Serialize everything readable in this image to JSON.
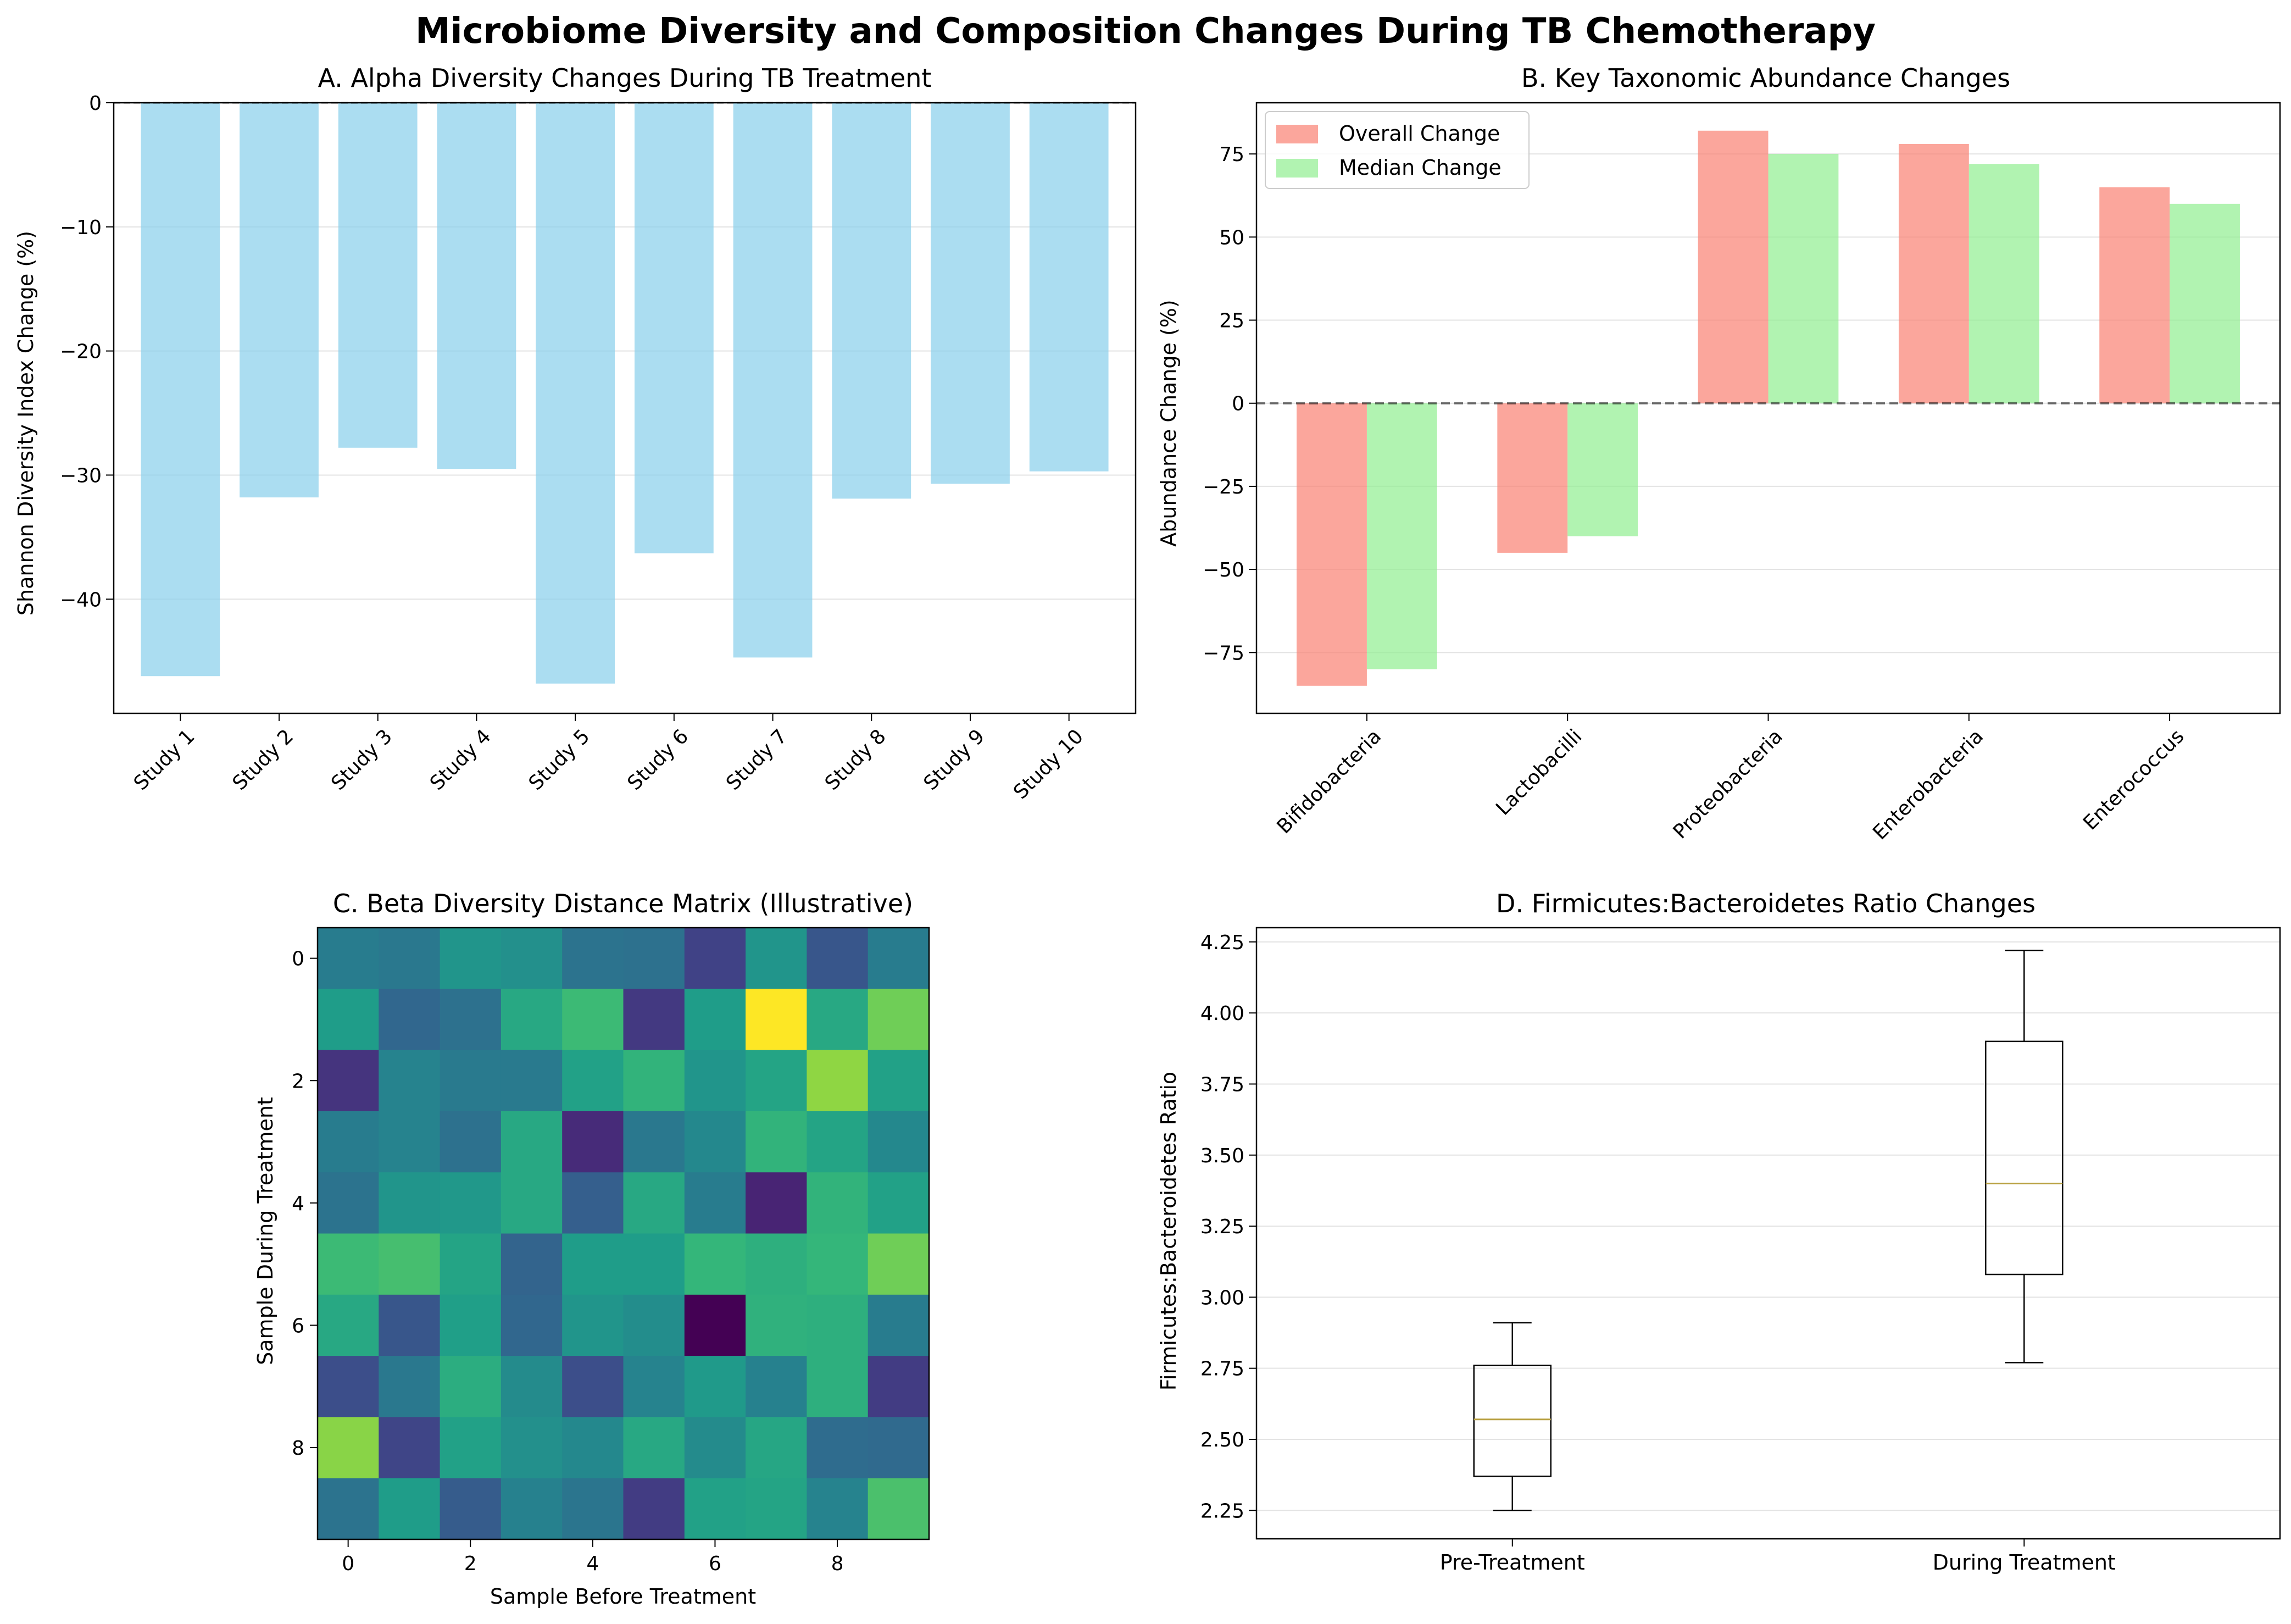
{
  "figure_title": "Microbiome Diversity and Composition Changes During TB Chemotherapy",
  "chart_data": [
    {
      "type": "bar",
      "title": "A. Alpha Diversity Changes During TB Treatment",
      "xlabel": "",
      "ylabel": "Shannon Diversity Index Change (%)",
      "categories": [
        "Study 1",
        "Study 2",
        "Study 3",
        "Study 4",
        "Study 5",
        "Study 6",
        "Study 7",
        "Study 8",
        "Study 9",
        "Study 10"
      ],
      "values": [
        -46.2,
        -31.8,
        -27.8,
        -29.5,
        -46.8,
        -36.3,
        -44.7,
        -31.9,
        -30.7,
        -29.7
      ],
      "ylim": [
        -49.2,
        0
      ],
      "yticks": [
        0,
        -10,
        -20,
        -30,
        -40
      ],
      "ytick_labels": [
        "0",
        "−10",
        "−20",
        "−30",
        "−40"
      ],
      "bar_color": "#87ceeb",
      "grid": "y",
      "zero_line": "dashed"
    },
    {
      "type": "bar",
      "title": "B. Key Taxonomic Abundance Changes",
      "xlabel": "",
      "ylabel": "Abundance Change (%)",
      "categories": [
        "Bifidobacteria",
        "Lactobacilli",
        "Proteobacteria",
        "Enterobacteria",
        "Enterococcus"
      ],
      "series": [
        {
          "name": "Overall Change",
          "values": [
            -85,
            -45,
            82,
            78,
            65
          ],
          "color": "#fa8072"
        },
        {
          "name": "Median Change",
          "values": [
            -80,
            -40,
            75,
            72,
            60
          ],
          "color": "#90ee90"
        }
      ],
      "ylim": [
        -93.3,
        90.4
      ],
      "yticks": [
        75,
        50,
        25,
        0,
        -25,
        -50,
        -75
      ],
      "ytick_labels": [
        "75",
        "50",
        "25",
        "0",
        "−25",
        "−50",
        "−75"
      ],
      "legend": "top-left",
      "grid": "y",
      "zero_line": "dashed"
    },
    {
      "type": "heatmap",
      "title": "C. Beta Diversity Distance Matrix (Illustrative)",
      "xlabel": "Sample Before Treatment",
      "ylabel": "Sample During Treatment",
      "xticks": [
        0,
        2,
        4,
        6,
        8
      ],
      "yticks": [
        0,
        2,
        4,
        6,
        8
      ],
      "colormap": "viridis",
      "matrix": [
        [
          0.42,
          0.4,
          0.52,
          0.5,
          0.38,
          0.37,
          0.2,
          0.52,
          0.27,
          0.42
        ],
        [
          0.55,
          0.33,
          0.37,
          0.6,
          0.68,
          0.17,
          0.55,
          1.0,
          0.6,
          0.78
        ],
        [
          0.15,
          0.45,
          0.41,
          0.41,
          0.57,
          0.65,
          0.52,
          0.58,
          0.83,
          0.57
        ],
        [
          0.42,
          0.45,
          0.37,
          0.6,
          0.12,
          0.4,
          0.47,
          0.65,
          0.58,
          0.47
        ],
        [
          0.38,
          0.52,
          0.53,
          0.6,
          0.3,
          0.6,
          0.42,
          0.1,
          0.65,
          0.57
        ],
        [
          0.68,
          0.7,
          0.58,
          0.32,
          0.55,
          0.55,
          0.66,
          0.63,
          0.66,
          0.78
        ],
        [
          0.6,
          0.27,
          0.56,
          0.33,
          0.52,
          0.49,
          0.0,
          0.64,
          0.63,
          0.42
        ],
        [
          0.24,
          0.4,
          0.62,
          0.48,
          0.24,
          0.45,
          0.54,
          0.44,
          0.63,
          0.18
        ],
        [
          0.82,
          0.21,
          0.57,
          0.5,
          0.47,
          0.6,
          0.48,
          0.59,
          0.35,
          0.34
        ],
        [
          0.38,
          0.55,
          0.29,
          0.44,
          0.39,
          0.18,
          0.57,
          0.58,
          0.45,
          0.71
        ]
      ]
    },
    {
      "type": "box",
      "title": "D. Firmicutes:Bacteroidetes Ratio Changes",
      "xlabel": "",
      "ylabel": "Firmicutes:Bacteroidetes Ratio",
      "categories": [
        "Pre-Treatment",
        "During Treatment"
      ],
      "boxes": [
        {
          "whisker_low": 2.25,
          "q1": 2.37,
          "median": 2.57,
          "q3": 2.76,
          "whisker_high": 2.91
        },
        {
          "whisker_low": 2.77,
          "q1": 3.08,
          "median": 3.4,
          "q3": 3.9,
          "whisker_high": 4.22
        }
      ],
      "ylim": [
        2.15,
        4.3
      ],
      "yticks": [
        2.25,
        2.5,
        2.75,
        3.0,
        3.25,
        3.5,
        3.75,
        4.0,
        4.25
      ],
      "ytick_labels": [
        "2.25",
        "2.50",
        "2.75",
        "3.00",
        "3.25",
        "3.50",
        "3.75",
        "4.00",
        "4.25"
      ],
      "median_color": "#b8a040",
      "grid": "y"
    }
  ]
}
